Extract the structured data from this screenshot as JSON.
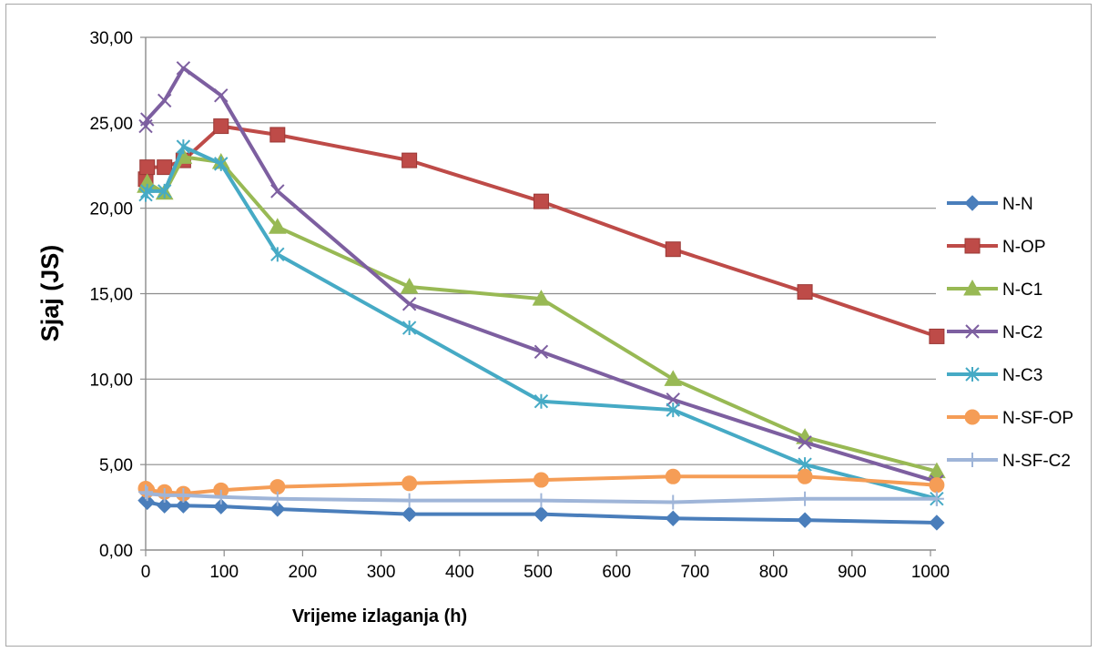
{
  "chart_data": {
    "type": "line",
    "title": "",
    "xlabel": "Vrijeme izlaganja (h)",
    "ylabel": "Sjaj (JS)",
    "xlim": [
      0,
      1000
    ],
    "ylim": [
      0,
      30
    ],
    "x_ticks": [
      "0",
      "100",
      "200",
      "300",
      "400",
      "500",
      "600",
      "700",
      "800",
      "900",
      "1000"
    ],
    "y_ticks": [
      "0,00",
      "5,00",
      "10,00",
      "15,00",
      "20,00",
      "25,00",
      "30,00"
    ],
    "grid": "horizontal",
    "legend_position": "right",
    "series": [
      {
        "name": "N-N",
        "color": "#4a7ebb",
        "marker": "diamond",
        "x": [
          0,
          2,
          24,
          48,
          96,
          168,
          336,
          504,
          672,
          840,
          1008
        ],
        "y": [
          2.9,
          2.8,
          2.6,
          2.6,
          2.55,
          2.4,
          2.1,
          2.1,
          1.85,
          1.75,
          1.6
        ]
      },
      {
        "name": "N-OP",
        "color": "#be4b48",
        "marker": "square",
        "x": [
          0,
          2,
          24,
          48,
          96,
          168,
          336,
          504,
          672,
          840,
          1008
        ],
        "y": [
          21.7,
          22.4,
          22.4,
          22.8,
          24.8,
          24.3,
          22.8,
          20.4,
          17.6,
          15.1,
          12.5
        ]
      },
      {
        "name": "N-C1",
        "color": "#98b954",
        "marker": "triangle",
        "x": [
          0,
          2,
          24,
          48,
          96,
          168,
          336,
          504,
          672,
          840,
          1008
        ],
        "y": [
          21.3,
          21.5,
          20.9,
          23.0,
          22.7,
          18.9,
          15.4,
          14.7,
          10.0,
          6.6,
          4.6
        ]
      },
      {
        "name": "N-C2",
        "color": "#7d5fa0",
        "marker": "x",
        "x": [
          0,
          2,
          24,
          48,
          96,
          168,
          336,
          504,
          672,
          840,
          1008
        ],
        "y": [
          24.8,
          25.2,
          26.3,
          28.2,
          26.6,
          21.0,
          14.4,
          11.6,
          8.8,
          6.3,
          4.0
        ]
      },
      {
        "name": "N-C3",
        "color": "#46aac5",
        "marker": "star",
        "x": [
          0,
          2,
          24,
          48,
          96,
          168,
          336,
          504,
          672,
          840,
          1008
        ],
        "y": [
          20.8,
          21.0,
          21.0,
          23.6,
          22.6,
          17.3,
          13.0,
          8.7,
          8.2,
          5.0,
          3.0
        ]
      },
      {
        "name": "N-SF-OP",
        "color": "#f59d56",
        "marker": "circle",
        "x": [
          0,
          2,
          24,
          48,
          96,
          168,
          336,
          504,
          672,
          840,
          1008
        ],
        "y": [
          3.6,
          3.5,
          3.4,
          3.3,
          3.5,
          3.7,
          3.9,
          4.1,
          4.3,
          4.3,
          3.8
        ]
      },
      {
        "name": "N-SF-C2",
        "color": "#9fb5d8",
        "marker": "plus",
        "x": [
          0,
          2,
          24,
          48,
          96,
          168,
          336,
          504,
          672,
          840,
          1008
        ],
        "y": [
          3.4,
          3.3,
          3.2,
          3.2,
          3.1,
          3.0,
          2.9,
          2.9,
          2.8,
          3.0,
          3.0
        ]
      }
    ]
  }
}
